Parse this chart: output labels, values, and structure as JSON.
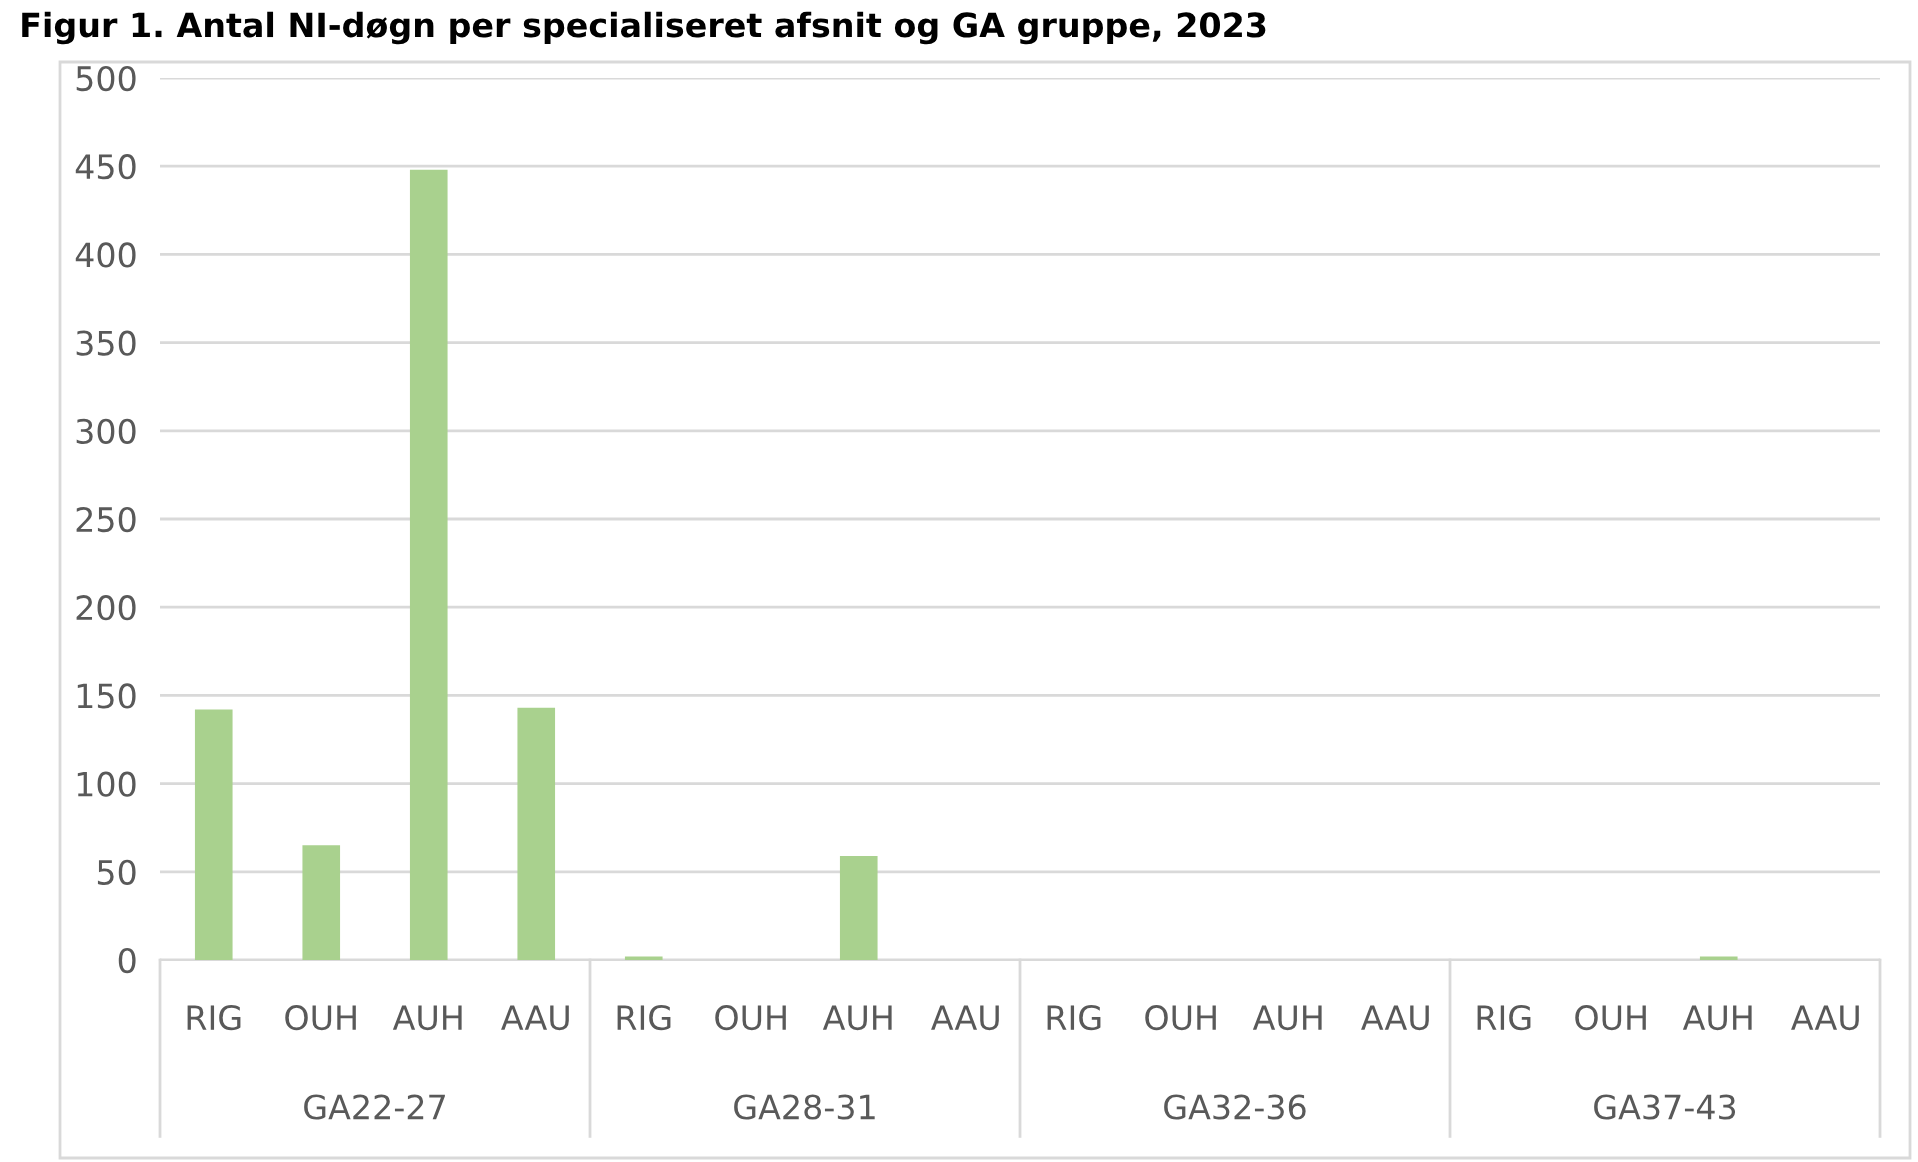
{
  "chart_data": {
    "type": "bar",
    "title": "Figur 1. Antal NI-døgn per specialiseret afsnit og GA gruppe, 2023",
    "categories": [
      "RIG",
      "OUH",
      "AUH",
      "AAU",
      "RIG",
      "OUH",
      "AUH",
      "AAU",
      "RIG",
      "OUH",
      "AUH",
      "AAU",
      "RIG",
      "OUH",
      "AUH",
      "AAU"
    ],
    "values": [
      142,
      65,
      448,
      143,
      2,
      0,
      59,
      0,
      0,
      0,
      0,
      0,
      0,
      0,
      2,
      0
    ],
    "color": "#a9d18e",
    "annotations": [
      "GA22-27",
      "GA28-31",
      "GA32-36",
      "GA37-43"
    ],
    "ylim": [
      0,
      500
    ],
    "yticks": [
      0,
      50,
      100,
      150,
      200,
      250,
      300,
      350,
      400,
      450,
      500
    ],
    "grid": "y"
  }
}
